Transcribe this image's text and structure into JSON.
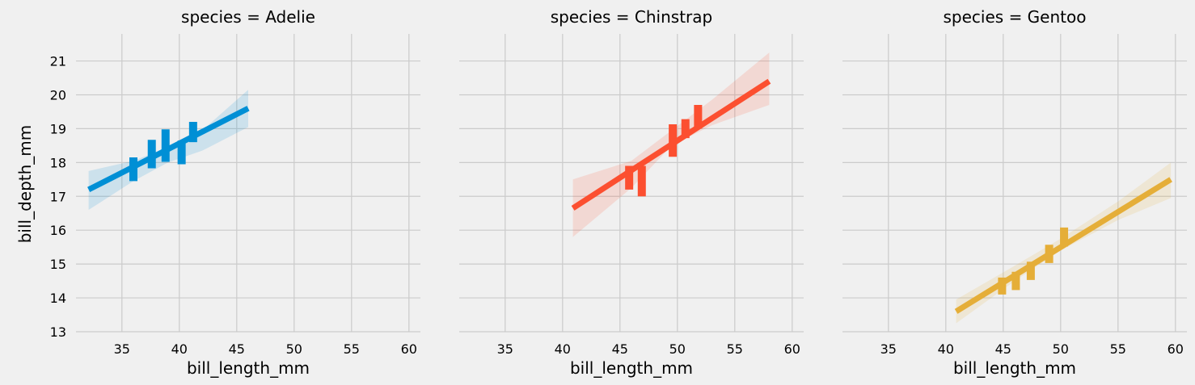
{
  "chart_data": {
    "type": "scatter",
    "xlabel": "bill_length_mm",
    "ylabel": "bill_depth_mm",
    "xlim": [
      31,
      61
    ],
    "ylim": [
      13,
      21.8
    ],
    "xticks": [
      35,
      40,
      45,
      50,
      55,
      60
    ],
    "yticks": [
      13,
      14,
      15,
      16,
      17,
      18,
      19,
      20,
      21
    ],
    "grid": true,
    "style": "fivethirtyeight",
    "panels": [
      {
        "title": "species = Adelie",
        "color": "#008fd5",
        "regression": {
          "x": [
            32.1,
            46.0
          ],
          "y": [
            17.2,
            19.6
          ]
        },
        "ci": {
          "x": [
            32.1,
            36,
            39,
            42,
            46.0
          ],
          "upper": [
            17.75,
            18.05,
            18.45,
            18.95,
            20.15
          ],
          "lower": [
            16.6,
            17.45,
            18.0,
            18.35,
            19.05
          ]
        },
        "points": [
          {
            "x": 36.0,
            "y": 17.8,
            "err": 0.35
          },
          {
            "x": 37.6,
            "y": 18.25,
            "err": 0.42
          },
          {
            "x": 38.8,
            "y": 18.5,
            "err": 0.48
          },
          {
            "x": 40.2,
            "y": 18.3,
            "err": 0.35
          },
          {
            "x": 41.2,
            "y": 18.9,
            "err": 0.3
          }
        ]
      },
      {
        "title": "species = Chinstrap",
        "color": "#fc4f30",
        "regression": {
          "x": [
            40.9,
            58.0
          ],
          "y": [
            16.65,
            20.4
          ]
        },
        "ci": {
          "x": [
            40.9,
            46,
            49.5,
            53,
            58.0
          ],
          "upper": [
            17.5,
            18.05,
            18.95,
            19.85,
            21.25
          ],
          "lower": [
            15.8,
            17.25,
            18.5,
            19.1,
            19.7
          ]
        },
        "points": [
          {
            "x": 45.8,
            "y": 17.55,
            "err": 0.35
          },
          {
            "x": 46.9,
            "y": 17.45,
            "err": 0.45
          },
          {
            "x": 49.6,
            "y": 18.65,
            "err": 0.48
          },
          {
            "x": 50.7,
            "y": 19.0,
            "err": 0.28
          },
          {
            "x": 51.8,
            "y": 19.35,
            "err": 0.35
          }
        ]
      },
      {
        "title": "species = Gentoo",
        "color": "#e5ae38",
        "regression": {
          "x": [
            40.9,
            59.6
          ],
          "y": [
            13.6,
            17.5
          ]
        },
        "ci": {
          "x": [
            40.9,
            46,
            50,
            55,
            59.6
          ],
          "upper": [
            13.95,
            14.95,
            15.75,
            16.85,
            18.0
          ],
          "lower": [
            13.25,
            14.5,
            15.4,
            16.3,
            16.95
          ]
        },
        "points": [
          {
            "x": 44.9,
            "y": 14.35,
            "err": 0.25
          },
          {
            "x": 46.1,
            "y": 14.5,
            "err": 0.27
          },
          {
            "x": 47.4,
            "y": 14.8,
            "err": 0.27
          },
          {
            "x": 49.0,
            "y": 15.3,
            "err": 0.27
          },
          {
            "x": 50.3,
            "y": 15.8,
            "err": 0.28
          }
        ]
      }
    ]
  }
}
